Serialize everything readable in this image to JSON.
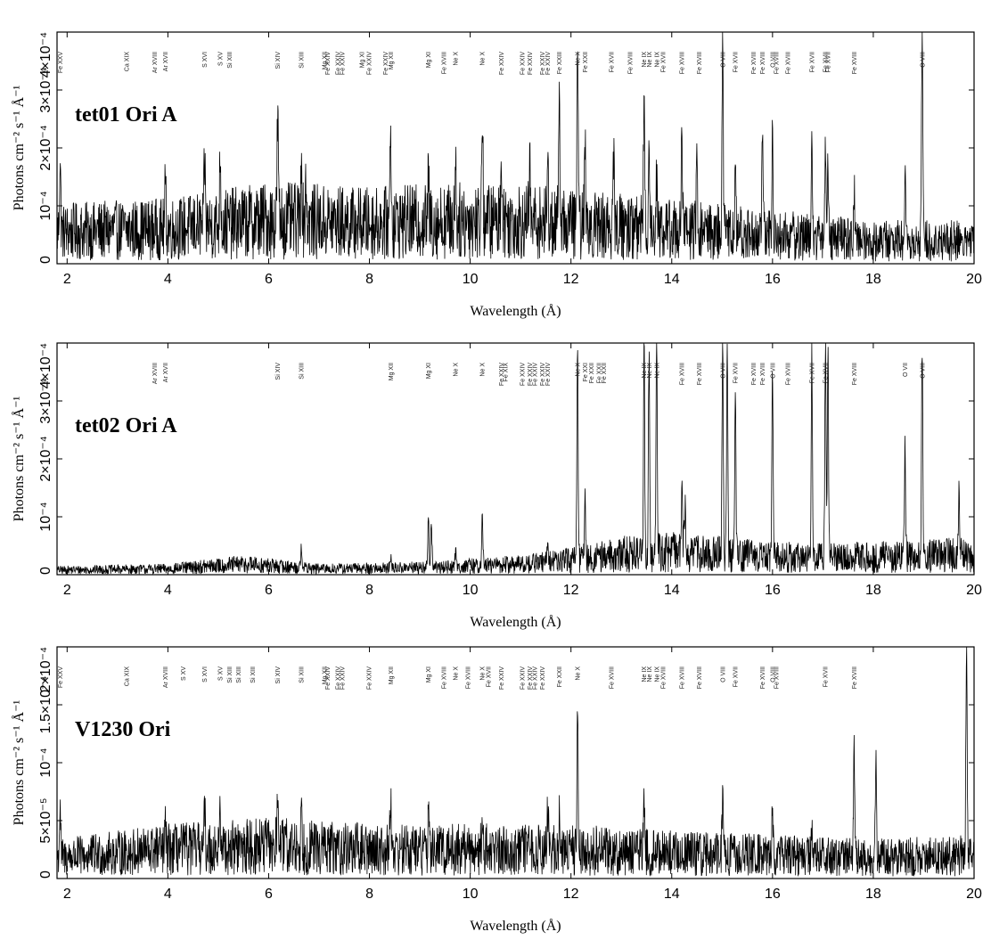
{
  "chart_data": [
    {
      "type": "line",
      "title": "tet01 Ori A",
      "xlabel": "Wavelength (Å)",
      "ylabel": "Photons cm⁻² s⁻¹ Å⁻¹",
      "xlim": [
        1.8,
        20
      ],
      "ylim": [
        0,
        0.0004
      ],
      "xticks": [
        2,
        4,
        6,
        8,
        10,
        12,
        14,
        16,
        18,
        20
      ],
      "yticks": [
        {
          "value": 0,
          "label": "0"
        },
        {
          "value": 0.0001,
          "label": "10⁻⁴"
        },
        {
          "value": 0.0002,
          "label": "2×10⁻⁴"
        },
        {
          "value": 0.0003,
          "label": "3×10⁻⁴"
        },
        {
          "value": 0.0004,
          "label": "4×10⁻⁴"
        }
      ],
      "continuum": [
        [
          1.8,
          5.5e-05
        ],
        [
          4,
          6e-05
        ],
        [
          6,
          7.5e-05
        ],
        [
          8,
          7e-05
        ],
        [
          10,
          7.5e-05
        ],
        [
          12,
          7e-05
        ],
        [
          14,
          6e-05
        ],
        [
          16,
          5e-05
        ],
        [
          18,
          4e-05
        ],
        [
          20,
          4e-05
        ]
      ],
      "peaks": [
        {
          "x": 1.86,
          "y": 0.00018
        },
        {
          "x": 3.95,
          "y": 0.000135
        },
        {
          "x": 4.73,
          "y": 0.00018
        },
        {
          "x": 5.04,
          "y": 0.0002
        },
        {
          "x": 6.18,
          "y": 0.00027
        },
        {
          "x": 6.65,
          "y": 0.000205
        },
        {
          "x": 6.74,
          "y": 0.00015
        },
        {
          "x": 8.42,
          "y": 0.00025
        },
        {
          "x": 9.17,
          "y": 0.00015
        },
        {
          "x": 9.71,
          "y": 0.00018
        },
        {
          "x": 10.24,
          "y": 0.00027
        },
        {
          "x": 10.62,
          "y": 0.0002
        },
        {
          "x": 11.18,
          "y": 0.00017
        },
        {
          "x": 11.54,
          "y": 0.00017
        },
        {
          "x": 11.77,
          "y": 0.00027
        },
        {
          "x": 12.13,
          "y": 0.0004
        },
        {
          "x": 12.28,
          "y": 0.0002
        },
        {
          "x": 12.85,
          "y": 0.00017
        },
        {
          "x": 13.45,
          "y": 0.00029
        },
        {
          "x": 13.55,
          "y": 0.00021
        },
        {
          "x": 13.7,
          "y": 0.00016
        },
        {
          "x": 14.2,
          "y": 0.00021
        },
        {
          "x": 14.5,
          "y": 0.00017
        },
        {
          "x": 15.01,
          "y": 0.00038
        },
        {
          "x": 15.26,
          "y": 0.00015
        },
        {
          "x": 15.8,
          "y": 0.00022
        },
        {
          "x": 16.0,
          "y": 0.00022
        },
        {
          "x": 16.78,
          "y": 0.00024
        },
        {
          "x": 17.05,
          "y": 0.00019
        },
        {
          "x": 17.1,
          "y": 0.00019
        },
        {
          "x": 17.62,
          "y": 0.00013
        },
        {
          "x": 18.63,
          "y": 0.00016
        },
        {
          "x": 18.97,
          "y": 0.0004
        }
      ],
      "line_labels": [
        {
          "x": 1.86,
          "label": "Fe XXV"
        },
        {
          "x": 3.18,
          "label": "Ca XIX"
        },
        {
          "x": 3.74,
          "label": "Ar XVIII"
        },
        {
          "x": 3.95,
          "label": "Ar XVII"
        },
        {
          "x": 4.73,
          "label": "S XVI"
        },
        {
          "x": 5.04,
          "label": "S XV"
        },
        {
          "x": 5.22,
          "label": "Si XIII"
        },
        {
          "x": 6.18,
          "label": "Si XIV"
        },
        {
          "x": 6.65,
          "label": "Si XIII"
        },
        {
          "x": 7.11,
          "label": "Mg XII"
        },
        {
          "x": 7.17,
          "label": "Fe XXIV"
        },
        {
          "x": 7.37,
          "label": "Fe XXIV"
        },
        {
          "x": 7.46,
          "label": "Fe XXIV"
        },
        {
          "x": 7.85,
          "label": "Mg XI"
        },
        {
          "x": 7.99,
          "label": "Fe XXIV"
        },
        {
          "x": 8.32,
          "label": "Fe XXIV"
        },
        {
          "x": 8.42,
          "label": "Mg XII"
        },
        {
          "x": 9.17,
          "label": "Mg XI"
        },
        {
          "x": 9.48,
          "label": "Fe XVIII"
        },
        {
          "x": 9.71,
          "label": "Ne X"
        },
        {
          "x": 10.24,
          "label": "Ne X"
        },
        {
          "x": 10.62,
          "label": "Fe XXIV"
        },
        {
          "x": 11.03,
          "label": "Fe XXIV"
        },
        {
          "x": 11.18,
          "label": "Fe XXIV"
        },
        {
          "x": 11.43,
          "label": "Fe XXIV"
        },
        {
          "x": 11.54,
          "label": "Fe XXIV"
        },
        {
          "x": 11.77,
          "label": "Fe XXIII"
        },
        {
          "x": 12.13,
          "label": "Ne X"
        },
        {
          "x": 12.28,
          "label": "Fe XXII"
        },
        {
          "x": 12.8,
          "label": "Fe XVII"
        },
        {
          "x": 13.17,
          "label": "Fe XVIII"
        },
        {
          "x": 13.45,
          "label": "Ne IX"
        },
        {
          "x": 13.55,
          "label": "Ne IX"
        },
        {
          "x": 13.7,
          "label": "Ne IX"
        },
        {
          "x": 13.83,
          "label": "Fe XVII"
        },
        {
          "x": 14.2,
          "label": "Fe XVIII"
        },
        {
          "x": 14.54,
          "label": "Fe XVIII"
        },
        {
          "x": 15.01,
          "label": "O VIII"
        },
        {
          "x": 15.26,
          "label": "Fe XVII"
        },
        {
          "x": 15.62,
          "label": "Fe XVIII"
        },
        {
          "x": 15.8,
          "label": "Fe XVIII"
        },
        {
          "x": 16.0,
          "label": "O VIII"
        },
        {
          "x": 16.07,
          "label": "Fe XVIII"
        },
        {
          "x": 16.3,
          "label": "Fe XVIII"
        },
        {
          "x": 16.78,
          "label": "Fe XVII"
        },
        {
          "x": 17.05,
          "label": "Fe XVII"
        },
        {
          "x": 17.1,
          "label": "Fe XVII"
        },
        {
          "x": 17.62,
          "label": "Fe XVIII"
        },
        {
          "x": 18.97,
          "label": "O VIII"
        }
      ]
    },
    {
      "type": "line",
      "title": "tet02 Ori A",
      "xlabel": "Wavelength (Å)",
      "ylabel": "Photons cm⁻² s⁻¹ Å⁻¹",
      "xlim": [
        1.8,
        20
      ],
      "ylim": [
        0,
        0.0004
      ],
      "xticks": [
        2,
        4,
        6,
        8,
        10,
        12,
        14,
        16,
        18,
        20
      ],
      "yticks": [
        {
          "value": 0,
          "label": "0"
        },
        {
          "value": 0.0001,
          "label": "10⁻⁴"
        },
        {
          "value": 0.0002,
          "label": "2×10⁻⁴"
        },
        {
          "value": 0.0003,
          "label": "3×10⁻⁴"
        },
        {
          "value": 0.0004,
          "label": "4×10⁻⁴"
        }
      ],
      "continuum": [
        [
          1.8,
          8e-06
        ],
        [
          4,
          1e-05
        ],
        [
          5.5,
          1.8e-05
        ],
        [
          7,
          1e-05
        ],
        [
          9,
          1.2e-05
        ],
        [
          11,
          1.8e-05
        ],
        [
          12,
          2.5e-05
        ],
        [
          13,
          3.5e-05
        ],
        [
          14,
          4e-05
        ],
        [
          16,
          3e-05
        ],
        [
          18,
          3e-05
        ],
        [
          20,
          3.5e-05
        ]
      ],
      "peaks": [
        {
          "x": 6.65,
          "y": 5e-05
        },
        {
          "x": 8.42,
          "y": 3e-05
        },
        {
          "x": 9.17,
          "y": 0.000105
        },
        {
          "x": 9.23,
          "y": 9e-05
        },
        {
          "x": 9.71,
          "y": 4e-05
        },
        {
          "x": 10.24,
          "y": 0.0001
        },
        {
          "x": 11.54,
          "y": 6e-05
        },
        {
          "x": 12.13,
          "y": 0.0004
        },
        {
          "x": 12.28,
          "y": 0.00013
        },
        {
          "x": 13.45,
          "y": 0.0004
        },
        {
          "x": 13.55,
          "y": 0.0004
        },
        {
          "x": 13.7,
          "y": 0.0004
        },
        {
          "x": 14.2,
          "y": 0.00015
        },
        {
          "x": 14.26,
          "y": 0.00012
        },
        {
          "x": 15.01,
          "y": 0.0004
        },
        {
          "x": 15.1,
          "y": 0.0004
        },
        {
          "x": 15.26,
          "y": 0.00031
        },
        {
          "x": 16.0,
          "y": 0.00036
        },
        {
          "x": 16.78,
          "y": 0.0004
        },
        {
          "x": 17.05,
          "y": 0.0004
        },
        {
          "x": 17.1,
          "y": 0.0004
        },
        {
          "x": 18.63,
          "y": 0.00022
        },
        {
          "x": 18.97,
          "y": 0.0004
        },
        {
          "x": 19.7,
          "y": 0.00015
        }
      ],
      "line_labels": [
        {
          "x": 3.74,
          "label": "Ar XVIII"
        },
        {
          "x": 3.95,
          "label": "Ar XVII"
        },
        {
          "x": 6.18,
          "label": "Si XIV"
        },
        {
          "x": 6.65,
          "label": "Si XIII"
        },
        {
          "x": 8.42,
          "label": "Mg XII"
        },
        {
          "x": 9.17,
          "label": "Mg XI"
        },
        {
          "x": 9.71,
          "label": "Ne X"
        },
        {
          "x": 10.24,
          "label": "Ne X"
        },
        {
          "x": 10.62,
          "label": "Fe XXIV"
        },
        {
          "x": 10.7,
          "label": "Fe XIX"
        },
        {
          "x": 11.03,
          "label": "Fe XXIV"
        },
        {
          "x": 11.18,
          "label": "Fe XXIV"
        },
        {
          "x": 11.28,
          "label": "Fe XXIV"
        },
        {
          "x": 11.43,
          "label": "Fe XXIV"
        },
        {
          "x": 11.54,
          "label": "Fe XXIV"
        },
        {
          "x": 12.13,
          "label": "Ne X"
        },
        {
          "x": 12.28,
          "label": "Fe XXI"
        },
        {
          "x": 12.4,
          "label": "Fe XXII"
        },
        {
          "x": 12.55,
          "label": "Fe XXII"
        },
        {
          "x": 12.65,
          "label": "Fe XXII"
        },
        {
          "x": 13.45,
          "label": "Ne IX"
        },
        {
          "x": 13.55,
          "label": "Ne IX"
        },
        {
          "x": 13.7,
          "label": "Ne IX"
        },
        {
          "x": 14.2,
          "label": "Fe XVIII"
        },
        {
          "x": 14.54,
          "label": "Fe XVIII"
        },
        {
          "x": 15.01,
          "label": "O VIII"
        },
        {
          "x": 15.26,
          "label": "Fe XVII"
        },
        {
          "x": 15.62,
          "label": "Fe XVIII"
        },
        {
          "x": 15.8,
          "label": "Fe XVIII"
        },
        {
          "x": 16.0,
          "label": "O VIII"
        },
        {
          "x": 16.3,
          "label": "Fe XVIII"
        },
        {
          "x": 16.78,
          "label": "Fe XVII"
        },
        {
          "x": 17.05,
          "label": "Fe XVII"
        },
        {
          "x": 17.62,
          "label": "Fe XVIII"
        },
        {
          "x": 18.63,
          "label": "O VII"
        },
        {
          "x": 18.97,
          "label": "O VIII"
        }
      ]
    },
    {
      "type": "line",
      "title": "V1230 Ori",
      "xlabel": "Wavelength (Å)",
      "ylabel": "Photons cm⁻² s⁻¹ Å⁻¹",
      "xlim": [
        1.8,
        20
      ],
      "ylim": [
        0,
        0.0002
      ],
      "xticks": [
        2,
        4,
        6,
        8,
        10,
        12,
        14,
        16,
        18,
        20
      ],
      "yticks": [
        {
          "value": 0,
          "label": "0"
        },
        {
          "value": 5e-05,
          "label": "5×10⁻⁵"
        },
        {
          "value": 0.0001,
          "label": "10⁻⁴"
        },
        {
          "value": 0.00015,
          "label": "1.5×10⁻⁴"
        },
        {
          "value": 0.0002,
          "label": "2×10⁻⁴"
        }
      ],
      "continuum": [
        [
          1.8,
          1.8e-05
        ],
        [
          4,
          2.5e-05
        ],
        [
          6,
          2.8e-05
        ],
        [
          8,
          2.5e-05
        ],
        [
          10,
          2.5e-05
        ],
        [
          12,
          2.5e-05
        ],
        [
          14,
          2.2e-05
        ],
        [
          16,
          2e-05
        ],
        [
          18,
          1.8e-05
        ],
        [
          20,
          2e-05
        ]
      ],
      "peaks": [
        {
          "x": 1.86,
          "y": 6.2e-05
        },
        {
          "x": 3.95,
          "y": 4.2e-05
        },
        {
          "x": 4.73,
          "y": 5.5e-05
        },
        {
          "x": 5.04,
          "y": 5.2e-05
        },
        {
          "x": 6.18,
          "y": 8.5e-05
        },
        {
          "x": 6.65,
          "y": 6e-05
        },
        {
          "x": 8.42,
          "y": 7.5e-05
        },
        {
          "x": 9.17,
          "y": 5e-05
        },
        {
          "x": 10.24,
          "y": 5.5e-05
        },
        {
          "x": 11.54,
          "y": 6e-05
        },
        {
          "x": 11.77,
          "y": 5e-05
        },
        {
          "x": 12.13,
          "y": 0.000145
        },
        {
          "x": 13.45,
          "y": 7.5e-05
        },
        {
          "x": 15.01,
          "y": 7e-05
        },
        {
          "x": 16.0,
          "y": 6e-05
        },
        {
          "x": 16.78,
          "y": 5e-05
        },
        {
          "x": 17.62,
          "y": 0.000115
        },
        {
          "x": 18.05,
          "y": 0.0001
        },
        {
          "x": 19.85,
          "y": 0.00021
        }
      ],
      "line_labels": [
        {
          "x": 1.86,
          "label": "Fe XXV"
        },
        {
          "x": 3.18,
          "label": "Ca XIX"
        },
        {
          "x": 3.95,
          "label": "Ar XVIII"
        },
        {
          "x": 4.3,
          "label": "S XV"
        },
        {
          "x": 4.73,
          "label": "S XVI"
        },
        {
          "x": 5.04,
          "label": "S XV"
        },
        {
          "x": 5.22,
          "label": "Si XIII"
        },
        {
          "x": 5.4,
          "label": "Si XIII"
        },
        {
          "x": 5.68,
          "label": "Si XIII"
        },
        {
          "x": 6.18,
          "label": "Si XIV"
        },
        {
          "x": 6.65,
          "label": "Si XIII"
        },
        {
          "x": 7.11,
          "label": "Mg XII"
        },
        {
          "x": 7.17,
          "label": "Fe XXIV"
        },
        {
          "x": 7.37,
          "label": "Fe XXIV"
        },
        {
          "x": 7.46,
          "label": "Fe XXIV"
        },
        {
          "x": 7.99,
          "label": "Fe XXIV"
        },
        {
          "x": 8.42,
          "label": "Mg XII"
        },
        {
          "x": 9.17,
          "label": "Mg XI"
        },
        {
          "x": 9.48,
          "label": "Fe XVIII"
        },
        {
          "x": 9.71,
          "label": "Ne X"
        },
        {
          "x": 9.95,
          "label": "Fe XVIII"
        },
        {
          "x": 10.24,
          "label": "Ne X"
        },
        {
          "x": 10.36,
          "label": "Fe XVII"
        },
        {
          "x": 10.62,
          "label": "Fe XXIV"
        },
        {
          "x": 11.03,
          "label": "Fe XXIV"
        },
        {
          "x": 11.18,
          "label": "Fe XXIV"
        },
        {
          "x": 11.28,
          "label": "Fe XXIV"
        },
        {
          "x": 11.43,
          "label": "Fe XXIV"
        },
        {
          "x": 11.77,
          "label": "Fe XXII"
        },
        {
          "x": 12.13,
          "label": "Ne X"
        },
        {
          "x": 12.8,
          "label": "Fe XVIII"
        },
        {
          "x": 13.45,
          "label": "Ne IX"
        },
        {
          "x": 13.55,
          "label": "Ne IX"
        },
        {
          "x": 13.7,
          "label": "Ne IX"
        },
        {
          "x": 13.83,
          "label": "Fe XVIII"
        },
        {
          "x": 14.2,
          "label": "Fe XVIII"
        },
        {
          "x": 14.54,
          "label": "Fe XVIII"
        },
        {
          "x": 15.01,
          "label": "O VIII"
        },
        {
          "x": 15.26,
          "label": "Fe XVII"
        },
        {
          "x": 15.8,
          "label": "Fe XVIII"
        },
        {
          "x": 16.0,
          "label": "O VIII"
        },
        {
          "x": 16.07,
          "label": "Fe XVIII"
        },
        {
          "x": 17.05,
          "label": "Fe XVII"
        },
        {
          "x": 17.62,
          "label": "Fe XVIII"
        }
      ]
    }
  ]
}
